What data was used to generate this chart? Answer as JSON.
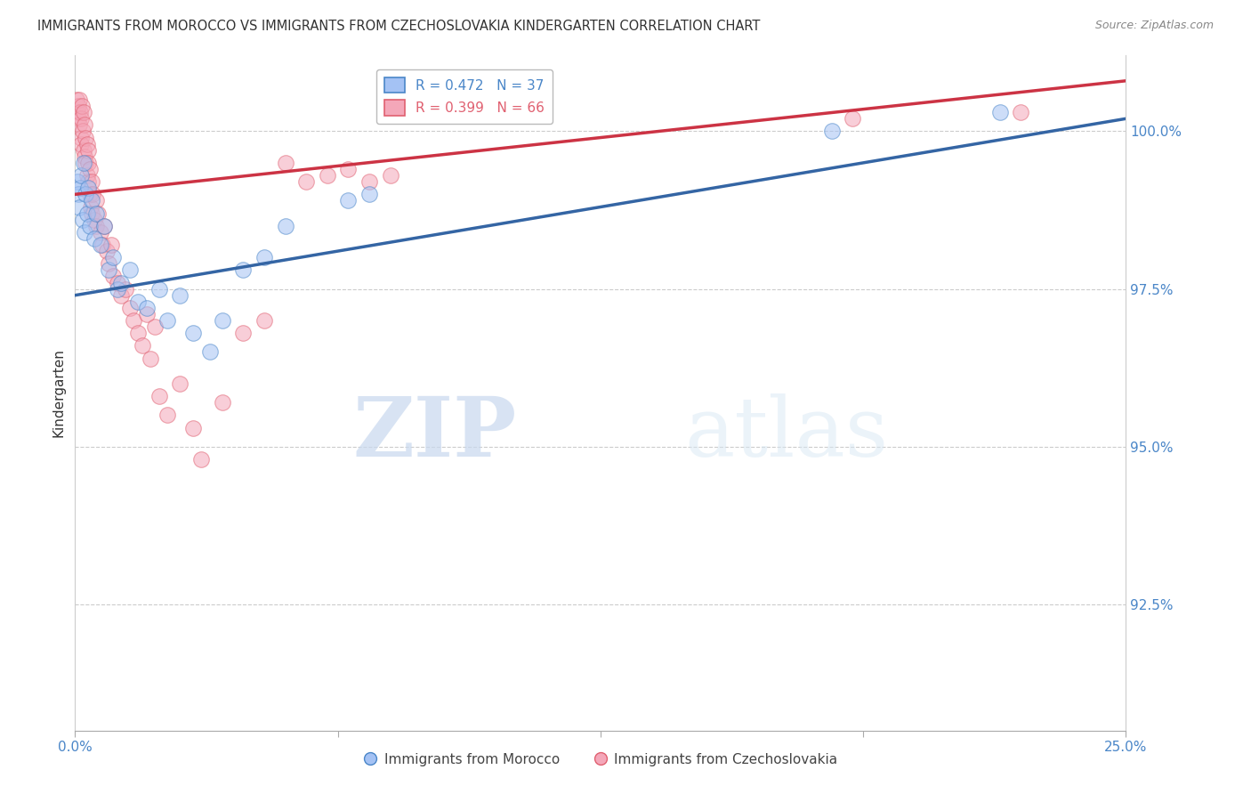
{
  "title": "IMMIGRANTS FROM MOROCCO VS IMMIGRANTS FROM CZECHOSLOVAKIA KINDERGARTEN CORRELATION CHART",
  "source": "Source: ZipAtlas.com",
  "ylabel": "Kindergarten",
  "ytick_values": [
    92.5,
    95.0,
    97.5,
    100.0
  ],
  "xlim": [
    0.0,
    25.0
  ],
  "ylim": [
    90.5,
    101.2
  ],
  "legend_blue_r": "R = 0.472",
  "legend_blue_n": "N = 37",
  "legend_pink_r": "R = 0.399",
  "legend_pink_n": "N = 66",
  "background_color": "#ffffff",
  "grid_color": "#cccccc",
  "blue_fill": "#a4c2f4",
  "pink_fill": "#f4a7b9",
  "blue_edge": "#4a86c8",
  "pink_edge": "#e06070",
  "blue_line_color": "#3465a4",
  "pink_line_color": "#cc3344",
  "watermark_zip": "ZIP",
  "watermark_atlas": "atlas",
  "blue_scatter": [
    [
      0.05,
      99.2
    ],
    [
      0.08,
      99.0
    ],
    [
      0.1,
      98.8
    ],
    [
      0.12,
      99.1
    ],
    [
      0.15,
      99.3
    ],
    [
      0.18,
      98.6
    ],
    [
      0.2,
      99.5
    ],
    [
      0.22,
      98.4
    ],
    [
      0.25,
      99.0
    ],
    [
      0.28,
      98.7
    ],
    [
      0.3,
      99.1
    ],
    [
      0.35,
      98.5
    ],
    [
      0.4,
      98.9
    ],
    [
      0.45,
      98.3
    ],
    [
      0.5,
      98.7
    ],
    [
      0.6,
      98.2
    ],
    [
      0.7,
      98.5
    ],
    [
      0.8,
      97.8
    ],
    [
      0.9,
      98.0
    ],
    [
      1.0,
      97.5
    ],
    [
      1.1,
      97.6
    ],
    [
      1.3,
      97.8
    ],
    [
      1.5,
      97.3
    ],
    [
      1.7,
      97.2
    ],
    [
      2.0,
      97.5
    ],
    [
      2.2,
      97.0
    ],
    [
      2.5,
      97.4
    ],
    [
      2.8,
      96.8
    ],
    [
      3.2,
      96.5
    ],
    [
      3.5,
      97.0
    ],
    [
      4.0,
      97.8
    ],
    [
      4.5,
      98.0
    ],
    [
      5.0,
      98.5
    ],
    [
      6.5,
      98.9
    ],
    [
      7.0,
      99.0
    ],
    [
      18.0,
      100.0
    ],
    [
      22.0,
      100.3
    ]
  ],
  "pink_scatter": [
    [
      0.03,
      100.5
    ],
    [
      0.05,
      100.3
    ],
    [
      0.07,
      100.4
    ],
    [
      0.08,
      100.2
    ],
    [
      0.1,
      100.5
    ],
    [
      0.1,
      100.1
    ],
    [
      0.12,
      100.3
    ],
    [
      0.13,
      99.9
    ],
    [
      0.15,
      100.2
    ],
    [
      0.15,
      99.8
    ],
    [
      0.17,
      100.4
    ],
    [
      0.18,
      100.0
    ],
    [
      0.2,
      100.3
    ],
    [
      0.2,
      99.7
    ],
    [
      0.22,
      100.1
    ],
    [
      0.22,
      99.6
    ],
    [
      0.25,
      99.9
    ],
    [
      0.25,
      99.5
    ],
    [
      0.28,
      99.8
    ],
    [
      0.28,
      99.3
    ],
    [
      0.3,
      99.7
    ],
    [
      0.3,
      99.2
    ],
    [
      0.32,
      99.5
    ],
    [
      0.35,
      99.0
    ],
    [
      0.35,
      99.4
    ],
    [
      0.38,
      98.8
    ],
    [
      0.4,
      99.2
    ],
    [
      0.4,
      98.7
    ],
    [
      0.42,
      99.0
    ],
    [
      0.45,
      98.6
    ],
    [
      0.5,
      98.9
    ],
    [
      0.5,
      98.5
    ],
    [
      0.55,
      98.7
    ],
    [
      0.6,
      98.4
    ],
    [
      0.65,
      98.2
    ],
    [
      0.7,
      98.5
    ],
    [
      0.75,
      98.1
    ],
    [
      0.8,
      97.9
    ],
    [
      0.85,
      98.2
    ],
    [
      0.9,
      97.7
    ],
    [
      1.0,
      97.6
    ],
    [
      1.1,
      97.4
    ],
    [
      1.2,
      97.5
    ],
    [
      1.3,
      97.2
    ],
    [
      1.4,
      97.0
    ],
    [
      1.5,
      96.8
    ],
    [
      1.6,
      96.6
    ],
    [
      1.7,
      97.1
    ],
    [
      1.8,
      96.4
    ],
    [
      1.9,
      96.9
    ],
    [
      2.0,
      95.8
    ],
    [
      2.2,
      95.5
    ],
    [
      2.5,
      96.0
    ],
    [
      2.8,
      95.3
    ],
    [
      3.0,
      94.8
    ],
    [
      3.5,
      95.7
    ],
    [
      4.0,
      96.8
    ],
    [
      4.5,
      97.0
    ],
    [
      5.0,
      99.5
    ],
    [
      5.5,
      99.2
    ],
    [
      6.0,
      99.3
    ],
    [
      6.5,
      99.4
    ],
    [
      7.0,
      99.2
    ],
    [
      7.5,
      99.3
    ],
    [
      18.5,
      100.2
    ],
    [
      22.5,
      100.3
    ]
  ],
  "blue_trendline_x": [
    0.0,
    25.0
  ],
  "blue_trendline_y": [
    97.4,
    100.2
  ],
  "pink_trendline_x": [
    0.0,
    25.0
  ],
  "pink_trendline_y": [
    99.0,
    100.8
  ]
}
